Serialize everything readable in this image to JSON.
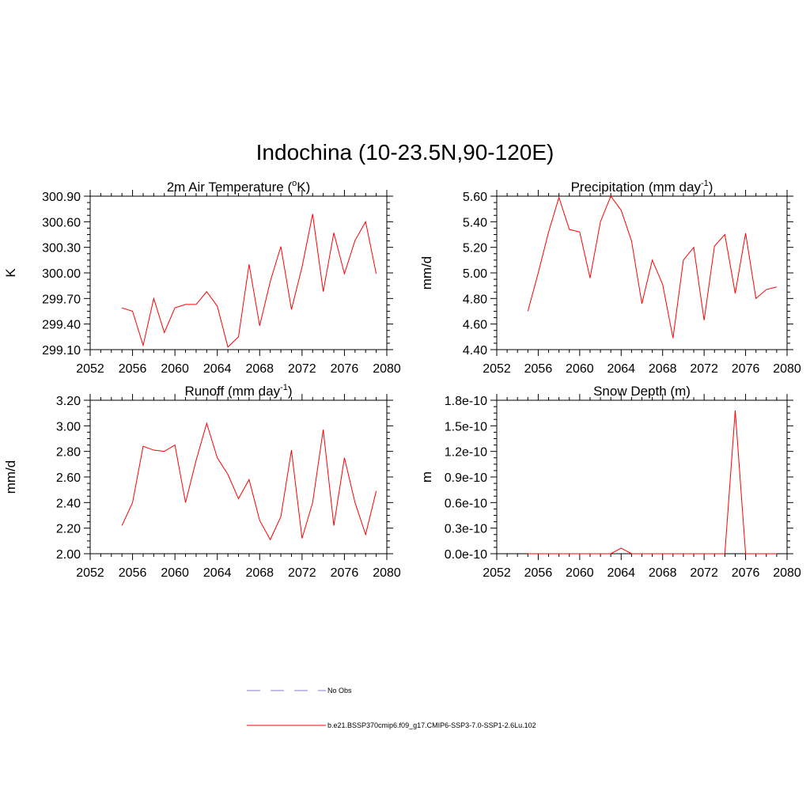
{
  "figure": {
    "title": "Indochina (10-23.5N,90-120E)"
  },
  "legend": {
    "entries": [
      {
        "label": "No Obs",
        "color": "#9999dd",
        "dash": true
      },
      {
        "label": "b.e21.BSSP370cmip6.f09_g17.CMIP6-SSP3-7.0-SSP1-2.6Lu.102",
        "color": "#ff0000",
        "dash": false
      }
    ]
  },
  "chart_data": [
    {
      "type": "line",
      "title": "2m Air Temperature (",
      "title_sup": "o",
      "title_tail": "K)",
      "ylabel": "K",
      "xlim": [
        2052,
        2080
      ],
      "ylim": [
        299.1,
        300.9
      ],
      "x_ticks": [
        2052,
        2056,
        2060,
        2064,
        2068,
        2072,
        2076,
        2080
      ],
      "x_tick_labels": [
        "2052",
        "2056",
        "2060",
        "2064",
        "2068",
        "2072",
        "2076",
        "2080"
      ],
      "y_ticks": [
        299.1,
        299.4,
        299.7,
        300.0,
        300.3,
        300.6,
        300.9
      ],
      "y_tick_labels": [
        "299.10",
        "299.40",
        "299.70",
        "300.00",
        "300.30",
        "300.60",
        "300.90"
      ],
      "color": "#ff0000",
      "x": [
        2055,
        2056,
        2057,
        2058,
        2059,
        2060,
        2061,
        2062,
        2063,
        2064,
        2065,
        2066,
        2067,
        2068,
        2069,
        2070,
        2071,
        2072,
        2073,
        2074,
        2075,
        2076,
        2077,
        2078,
        2079
      ],
      "y": [
        299.59,
        299.55,
        299.15,
        299.7,
        299.3,
        299.59,
        299.63,
        299.63,
        299.78,
        299.61,
        299.13,
        299.25,
        300.1,
        299.38,
        299.9,
        300.31,
        299.57,
        300.07,
        300.69,
        299.78,
        300.47,
        299.99,
        300.38,
        300.6,
        299.99
      ]
    },
    {
      "type": "line",
      "title": "Precipitation (mm day",
      "title_sup": "-1",
      "title_tail": ")",
      "ylabel": "mm/d",
      "xlim": [
        2052,
        2080
      ],
      "ylim": [
        4.4,
        5.6
      ],
      "x_ticks": [
        2052,
        2056,
        2060,
        2064,
        2068,
        2072,
        2076,
        2080
      ],
      "x_tick_labels": [
        "2052",
        "2056",
        "2060",
        "2064",
        "2068",
        "2072",
        "2076",
        "2080"
      ],
      "y_ticks": [
        4.4,
        4.6,
        4.8,
        5.0,
        5.2,
        5.4,
        5.6
      ],
      "y_tick_labels": [
        "4.40",
        "4.60",
        "4.80",
        "5.00",
        "5.20",
        "5.40",
        "5.60"
      ],
      "color": "#ff0000",
      "x": [
        2055,
        2056,
        2057,
        2058,
        2059,
        2060,
        2061,
        2062,
        2063,
        2064,
        2065,
        2066,
        2067,
        2068,
        2069,
        2070,
        2071,
        2072,
        2073,
        2074,
        2075,
        2076,
        2077,
        2078,
        2079
      ],
      "y": [
        4.7,
        5.0,
        5.32,
        5.59,
        5.34,
        5.32,
        4.96,
        5.4,
        5.6,
        5.49,
        5.25,
        4.76,
        5.1,
        4.91,
        4.49,
        5.1,
        5.2,
        4.63,
        5.21,
        5.3,
        4.84,
        5.31,
        4.8,
        4.87,
        4.89
      ]
    },
    {
      "type": "line",
      "title": "Runoff (mm day",
      "title_sup": "-1",
      "title_tail": ")",
      "ylabel": "mm/d",
      "xlim": [
        2052,
        2080
      ],
      "ylim": [
        2.0,
        3.2
      ],
      "x_ticks": [
        2052,
        2056,
        2060,
        2064,
        2068,
        2072,
        2076,
        2080
      ],
      "x_tick_labels": [
        "2052",
        "2056",
        "2060",
        "2064",
        "2068",
        "2072",
        "2076",
        "2080"
      ],
      "y_ticks": [
        2.0,
        2.2,
        2.4,
        2.6,
        2.8,
        3.0,
        3.2
      ],
      "y_tick_labels": [
        "2.00",
        "2.20",
        "2.40",
        "2.60",
        "2.80",
        "3.00",
        "3.20"
      ],
      "color": "#ff0000",
      "x": [
        2055,
        2056,
        2057,
        2058,
        2059,
        2060,
        2061,
        2062,
        2063,
        2064,
        2065,
        2066,
        2067,
        2068,
        2069,
        2070,
        2071,
        2072,
        2073,
        2074,
        2075,
        2076,
        2077,
        2078,
        2079
      ],
      "y": [
        2.22,
        2.4,
        2.84,
        2.81,
        2.8,
        2.85,
        2.4,
        2.73,
        3.02,
        2.75,
        2.62,
        2.43,
        2.58,
        2.26,
        2.11,
        2.29,
        2.81,
        2.12,
        2.4,
        2.97,
        2.22,
        2.75,
        2.4,
        2.15,
        2.49
      ]
    },
    {
      "type": "line",
      "title": "Snow Depth (m)",
      "title_sup": "",
      "title_tail": "",
      "ylabel": "m",
      "xlim": [
        2052,
        2080
      ],
      "ylim": [
        0,
        1.8e-10
      ],
      "x_ticks": [
        2052,
        2056,
        2060,
        2064,
        2068,
        2072,
        2076,
        2080
      ],
      "x_tick_labels": [
        "2052",
        "2056",
        "2060",
        "2064",
        "2068",
        "2072",
        "2076",
        "2080"
      ],
      "y_ticks": [
        0,
        3e-11,
        6e-11,
        9e-11,
        1.2e-10,
        1.5e-10,
        1.8e-10
      ],
      "y_tick_labels": [
        "0.0e-10",
        "0.3e-10",
        "0.6e-10",
        "0.9e-10",
        "1.2e-10",
        "1.5e-10",
        "1.8e-10"
      ],
      "color": "#ff0000",
      "x": [
        2055,
        2056,
        2057,
        2058,
        2059,
        2060,
        2061,
        2062,
        2063,
        2064,
        2065,
        2066,
        2067,
        2068,
        2069,
        2070,
        2071,
        2072,
        2073,
        2074,
        2075,
        2076,
        2077,
        2078,
        2079
      ],
      "y": [
        0,
        0,
        0,
        0,
        0,
        0,
        0,
        0,
        0,
        6.5e-12,
        0,
        0,
        0,
        0,
        0,
        0,
        0,
        0,
        0,
        0,
        1.68e-10,
        0,
        0,
        0,
        0
      ]
    }
  ]
}
